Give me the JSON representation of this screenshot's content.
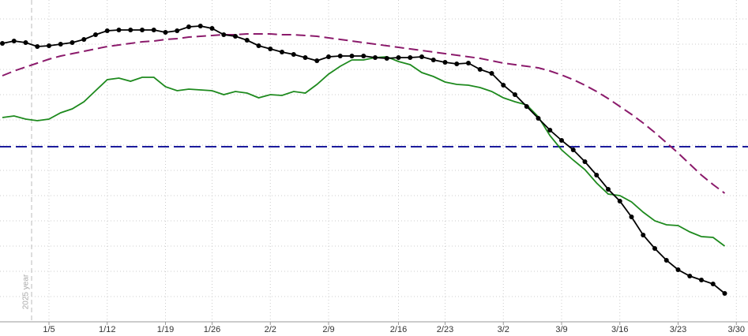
{
  "chart_data": {
    "type": "line",
    "annotation": "2025 year",
    "categories": [
      null,
      null,
      null,
      null,
      "1/5",
      null,
      null,
      null,
      null,
      "1/12",
      null,
      null,
      null,
      null,
      "1/19",
      null,
      null,
      null,
      "1/26",
      null,
      null,
      null,
      null,
      "2/2",
      null,
      null,
      null,
      null,
      "2/9",
      null,
      null,
      null,
      null,
      null,
      "2/16",
      null,
      null,
      null,
      "2/23",
      null,
      null,
      null,
      null,
      "3/2",
      null,
      null,
      null,
      null,
      "3/9",
      null,
      null,
      null,
      null,
      "3/16",
      null,
      null,
      null,
      null,
      "3/23",
      null,
      null,
      null,
      null,
      "3/30"
    ],
    "series": [
      {
        "color": "#8b1a6b",
        "dash": true,
        "markers": false,
        "values": [
          312,
          318,
          323,
          328,
          333,
          337,
          340,
          343,
          346,
          349,
          351,
          353,
          355,
          356,
          358,
          359,
          361,
          362,
          363,
          364,
          364,
          365,
          365,
          365,
          364,
          364,
          363,
          362,
          360,
          358,
          356,
          354,
          352,
          350,
          348,
          346,
          344,
          342,
          340,
          338,
          336,
          334,
          331,
          328,
          326,
          324,
          322,
          318,
          313,
          307,
          300,
          292,
          283,
          273,
          263,
          252,
          240,
          227,
          214,
          200,
          186,
          174,
          163,
          null
        ]
      },
      {
        "color": "#1e8a1e",
        "dash": false,
        "markers": false,
        "values": [
          259,
          261,
          257,
          255,
          257,
          265,
          270,
          279,
          293,
          307,
          309,
          305,
          310,
          310,
          298,
          293,
          295,
          294,
          293,
          288,
          292,
          290,
          284,
          288,
          287,
          292,
          290,
          301,
          314,
          324,
          332,
          332,
          335,
          336,
          330,
          326,
          316,
          311,
          304,
          301,
          300,
          297,
          292,
          284,
          279,
          275,
          260,
          236,
          218,
          205,
          193,
          176,
          162,
          160,
          152,
          139,
          128,
          123,
          122,
          114,
          108,
          107,
          96,
          null
        ]
      },
      {
        "color": "#000000",
        "dash": false,
        "markers": true,
        "values": [
          353,
          356,
          354,
          349,
          350,
          352,
          354,
          358,
          364,
          369,
          370,
          370,
          370,
          370,
          367,
          369,
          374,
          375,
          372,
          364,
          362,
          357,
          350,
          346,
          342,
          339,
          335,
          331,
          336,
          337,
          337,
          337,
          335,
          334,
          335,
          335,
          336,
          332,
          329,
          327,
          328,
          320,
          315,
          300,
          288,
          273,
          258,
          243,
          230,
          218,
          203,
          186,
          168,
          153,
          133,
          110,
          93,
          78,
          66,
          58,
          53,
          48,
          36,
          null
        ]
      }
    ],
    "reference_line": {
      "value": 222,
      "color": "#1c1c9c"
    },
    "ylim": [
      0,
      400
    ],
    "grid_values": [
      0,
      32,
      64,
      96,
      128,
      160,
      192,
      224,
      256,
      288,
      320,
      352,
      384
    ],
    "grid": true
  }
}
